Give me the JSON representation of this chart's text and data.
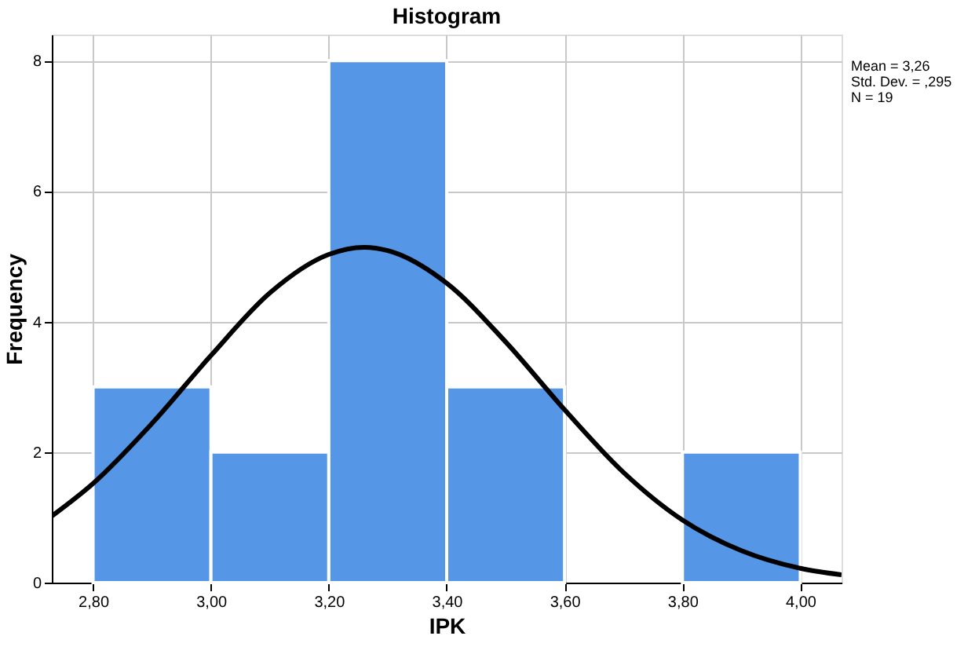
{
  "chart_data": {
    "type": "histogram",
    "title": "Histogram",
    "xlabel": "IPK",
    "ylabel": "Frequency",
    "bins": [
      2.8,
      3.0,
      3.2,
      3.4,
      3.6,
      3.8,
      4.0
    ],
    "values": [
      3,
      2,
      8,
      3,
      0,
      2
    ],
    "color": "#5596e6",
    "series": [
      {
        "type": "line",
        "color": "#000000",
        "x": [
          2.73,
          2.8,
          2.9,
          3.0,
          3.1,
          3.2,
          3.26,
          3.3,
          3.4,
          3.5,
          3.6,
          3.7,
          3.8,
          3.9,
          4.0,
          4.07
        ],
        "values": [
          1.02,
          1.52,
          2.44,
          3.48,
          4.44,
          5.03,
          5.14,
          5.09,
          4.59,
          3.69,
          2.65,
          1.69,
          0.96,
          0.49,
          0.22,
          0.12
        ]
      }
    ],
    "xlim": [
      2.73,
      4.07
    ],
    "xticks": [
      {
        "value": 2.8,
        "label": "2,80"
      },
      {
        "value": 3.0,
        "label": "3,00"
      },
      {
        "value": 3.2,
        "label": "3,20"
      },
      {
        "value": 3.4,
        "label": "3,40"
      },
      {
        "value": 3.6,
        "label": "3,60"
      },
      {
        "value": 3.8,
        "label": "3,80"
      },
      {
        "value": 4.0,
        "label": "4,00"
      }
    ],
    "ylim": [
      0,
      8.4
    ],
    "yticks": [
      0,
      2,
      4,
      6,
      8
    ],
    "grid": true,
    "annotations": [
      "Mean = 3,26",
      "Std. Dev. = ,295",
      "N = 19"
    ]
  }
}
